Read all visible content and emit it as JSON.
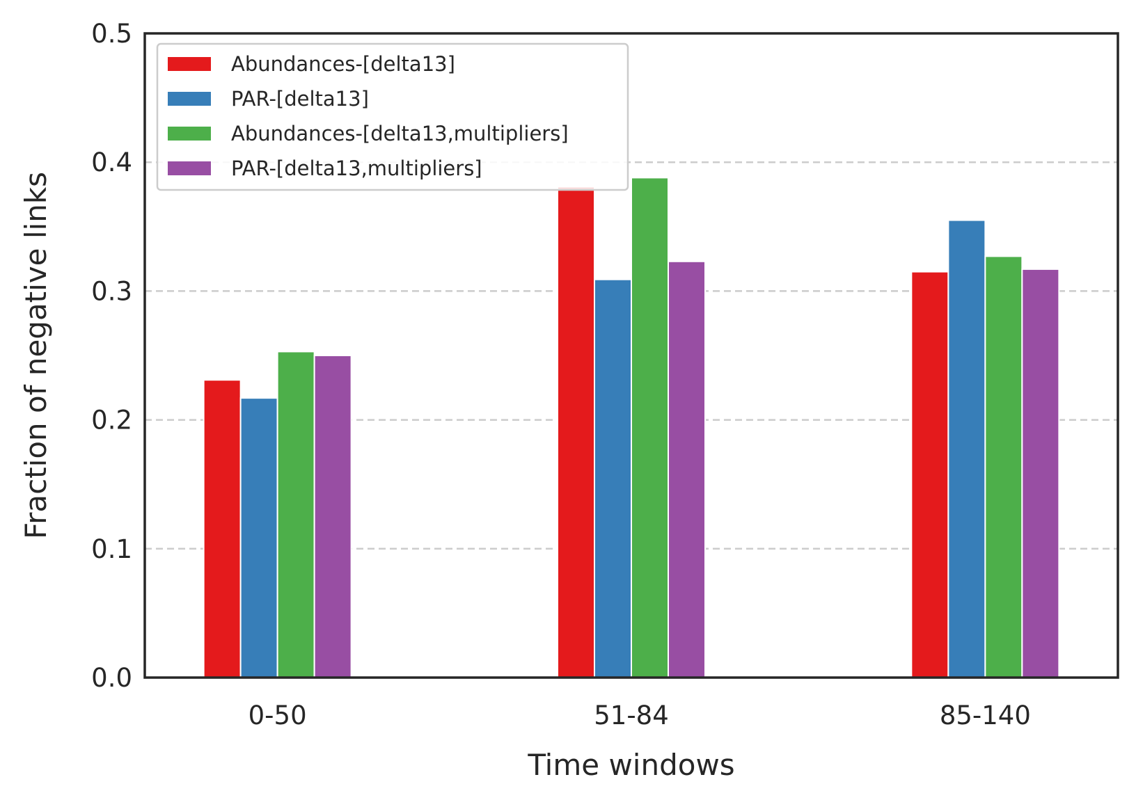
{
  "chart_data": {
    "type": "bar",
    "categories": [
      "0-50",
      "51-84",
      "85-140"
    ],
    "series": [
      {
        "name": "Abundances-[delta13]",
        "color": "#e41a1c",
        "values": [
          0.231,
          0.381,
          0.315
        ]
      },
      {
        "name": "PAR-[delta13]",
        "color": "#377eb8",
        "values": [
          0.217,
          0.309,
          0.355
        ]
      },
      {
        "name": "Abundances-[delta13,multipliers]",
        "color": "#4daf4a",
        "values": [
          0.253,
          0.388,
          0.327
        ]
      },
      {
        "name": "PAR-[delta13,multipliers]",
        "color": "#984ea3",
        "values": [
          0.25,
          0.323,
          0.317
        ]
      }
    ],
    "xlabel": "Time windows",
    "ylabel": "Fraction of negative links",
    "ylim": [
      0,
      0.5
    ],
    "yticks": [
      "0.0",
      "0.1",
      "0.2",
      "0.3",
      "0.4",
      "0.5"
    ],
    "grid": "horizontal-dashed",
    "legend": "top-left"
  }
}
